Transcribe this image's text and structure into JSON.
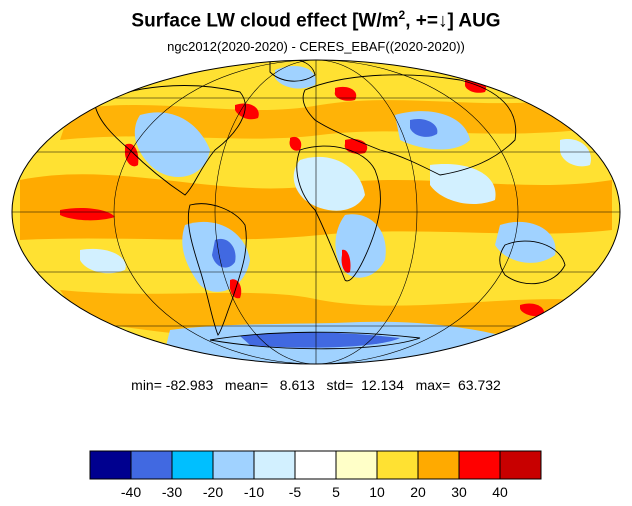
{
  "header": {
    "title_main": "Surface LW cloud effect [W/m",
    "title_sup": "2",
    "title_rest": ", +=↓]  AUG",
    "subtitle": "ngc2012(2020-2020) - CERES_EBAF((2020-2020))"
  },
  "stats": {
    "text": "min= -82.983   mean=   8.613   std=  12.134   max=  63.732",
    "min": -82.983,
    "mean": 8.613,
    "std": 12.134,
    "max": 63.732
  },
  "colorbar": {
    "colors": [
      "#00008f",
      "#4169e1",
      "#00bfff",
      "#a0d2ff",
      "#d2f0ff",
      "#ffffff",
      "#ffffc8",
      "#ffe132",
      "#ffaa00",
      "#ff0000",
      "#c80000"
    ],
    "tick_labels": [
      "-40",
      "-30",
      "-20",
      "-10",
      "-5",
      "5",
      "10",
      "20",
      "30",
      "40"
    ]
  },
  "map": {
    "projection": "mollweide",
    "ocean_background": "#ffe132",
    "land_outline": "#000000"
  }
}
